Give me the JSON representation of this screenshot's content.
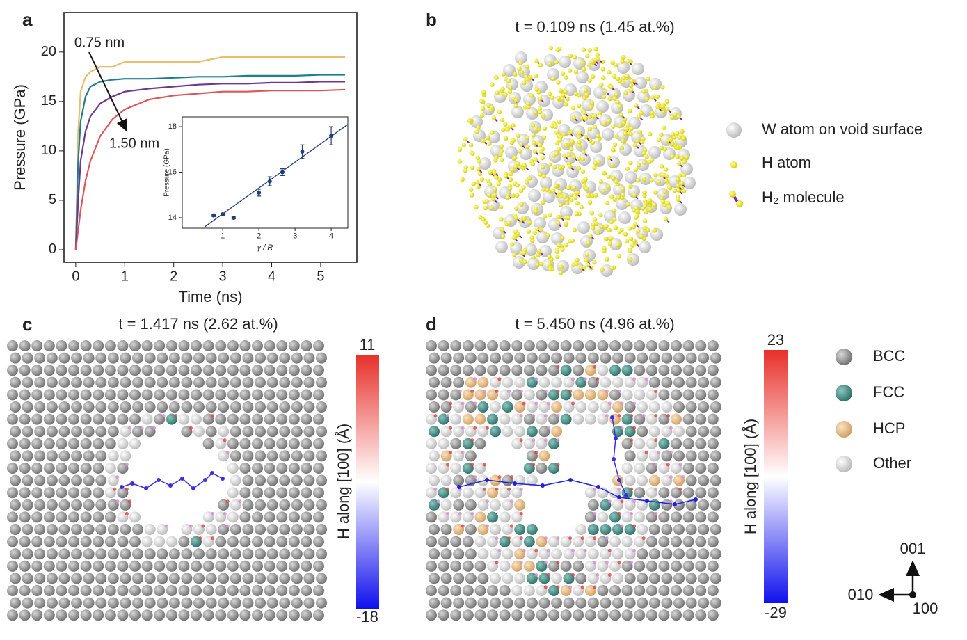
{
  "panels": {
    "a": {
      "label": "a"
    },
    "b": {
      "label": "b",
      "title": "t = 0.109 ns (1.45 at.%)",
      "legend": [
        "W atom on void surface",
        "H atom",
        "H₂ molecule"
      ]
    },
    "c": {
      "label": "c",
      "title": "t = 1.417 ns (2.62 at.%)",
      "colorbar_label": "H along [100] (Å)",
      "cmax": 11,
      "cmin": -18
    },
    "d": {
      "label": "d",
      "title": "t = 5.450 ns (4.96 at.%)",
      "colorbar_label": "H along [100] (Å)",
      "cmax": 23,
      "cmin": -29,
      "legend": [
        "BCC",
        "FCC",
        "HCP",
        "Other"
      ]
    },
    "axes_triad": [
      "001",
      "010",
      "100"
    ]
  },
  "chart_data": [
    {
      "type": "line",
      "x_label": "Time (ns)",
      "y_label": "Pressure (GPa)",
      "x": [
        0,
        0.05,
        0.1,
        0.2,
        0.3,
        0.5,
        0.75,
        1,
        1.5,
        2,
        2.5,
        3,
        3.5,
        4,
        4.5,
        5,
        5.5
      ],
      "series": [
        {
          "color": "#e8be6e",
          "values": [
            0,
            12,
            16,
            17.5,
            18,
            18.5,
            18.5,
            19,
            19,
            19,
            19,
            19.5,
            19.5,
            19.5,
            19.5,
            19.5,
            19.5
          ]
        },
        {
          "color": "#1f7f8f",
          "values": [
            0,
            9,
            13,
            15.5,
            16.5,
            17,
            17.2,
            17.3,
            17.3,
            17.4,
            17.5,
            17.5,
            17.6,
            17.6,
            17.6,
            17.7,
            17.7
          ]
        },
        {
          "color": "#6b3a8e",
          "values": [
            0,
            5,
            9,
            12,
            13.5,
            14.8,
            15.5,
            16,
            16.3,
            16.5,
            16.7,
            16.8,
            16.8,
            16.9,
            16.9,
            17,
            17
          ]
        },
        {
          "color": "#d9575a",
          "values": [
            0,
            2,
            4,
            7,
            9,
            11.5,
            13.2,
            14.2,
            15.2,
            15.6,
            15.8,
            16,
            16,
            16.1,
            16.1,
            16.1,
            16.2
          ]
        }
      ],
      "annotations": [
        "0.75 nm",
        "1.50 nm"
      ],
      "xlim": [
        -0.24,
        5.74
      ],
      "ylim": [
        -1.27,
        24
      ],
      "xticks": [
        0,
        1,
        2,
        3,
        4,
        5
      ],
      "yticks": [
        0,
        5,
        10,
        15,
        20
      ]
    },
    {
      "type": "scatter",
      "x_label": "γ / R",
      "y_label": "Pressure (GPa)",
      "color": "#1f3f7a",
      "x": [
        0.75,
        1,
        1.3,
        2,
        2.3,
        2.65,
        3.2,
        4
      ],
      "values": [
        14.1,
        14.15,
        14.0,
        15.1,
        15.6,
        16.0,
        16.9,
        17.6
      ],
      "errors": [
        0.05,
        0.05,
        0.05,
        0.15,
        0.2,
        0.15,
        0.3,
        0.4
      ],
      "fit": {
        "x": [
          0.5,
          4.46
        ],
        "values": [
          13.6,
          18.1
        ]
      },
      "xlim": [
        -0.12,
        4.46
      ],
      "ylim": [
        13.54,
        18.43
      ],
      "xticks": [
        1,
        2,
        3,
        4
      ],
      "yticks": [
        14,
        16,
        18
      ]
    }
  ]
}
